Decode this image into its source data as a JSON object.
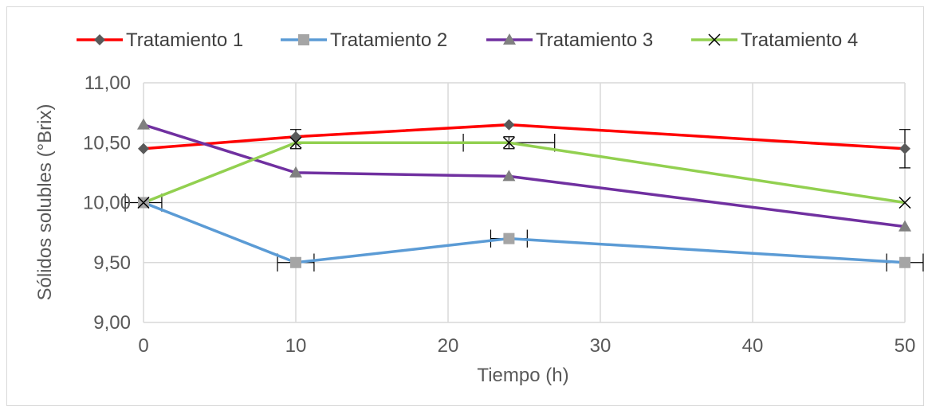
{
  "chart_data": {
    "type": "line",
    "title": "",
    "xlabel": "Tiempo (h)",
    "ylabel": "Sólidos solubles (°Brix)",
    "xlim": [
      0,
      50
    ],
    "ylim": [
      9.0,
      11.0
    ],
    "xticks": [
      0,
      10,
      20,
      30,
      40,
      50
    ],
    "xtick_labels": [
      "0",
      "10",
      "20",
      "30",
      "40",
      "50"
    ],
    "yticks": [
      9.0,
      9.5,
      10.0,
      10.5,
      11.0
    ],
    "ytick_labels": [
      "9,00",
      "9,50",
      "10,00",
      "10,50",
      "11,00"
    ],
    "grid": true,
    "legend_position": "top",
    "x": [
      0,
      10,
      24,
      50
    ],
    "series": [
      {
        "name": "Tratamiento 1",
        "color": "#ff0000",
        "marker": "diamond",
        "marker_color": "#595959",
        "values": [
          10.45,
          10.55,
          10.65,
          10.45
        ]
      },
      {
        "name": "Tratamiento 2",
        "color": "#5b9bd5",
        "marker": "square",
        "marker_color": "#a5a5a5",
        "values": [
          10.0,
          9.5,
          9.7,
          9.5
        ]
      },
      {
        "name": "Tratamiento 3",
        "color": "#7030a0",
        "marker": "triangle",
        "marker_color": "#808080",
        "values": [
          10.65,
          10.25,
          10.22,
          9.8
        ]
      },
      {
        "name": "Tratamiento 4",
        "color": "#92d050",
        "marker": "x",
        "marker_color": "#000000",
        "values": [
          10.0,
          10.5,
          10.5,
          10.0
        ]
      }
    ],
    "error_bars": [
      {
        "series": "Tratamiento 1",
        "x": 10,
        "y": 10.55,
        "direction": "vertical",
        "error": 0.06
      },
      {
        "series": "Tratamiento 1",
        "x": 50,
        "y": 10.45,
        "direction": "vertical",
        "error": 0.16
      },
      {
        "series": "Tratamiento 4",
        "x": 10,
        "y": 10.5,
        "direction": "vertical",
        "error": 0.05
      },
      {
        "series": "Tratamiento 4",
        "x": 24,
        "y": 10.5,
        "direction": "vertical",
        "error": 0.05
      },
      {
        "series": "Tratamiento 4",
        "x": 24,
        "y": 10.5,
        "direction": "horizontal",
        "error": 3
      },
      {
        "series": "Tratamiento 2",
        "x": 0,
        "y": 10.0,
        "direction": "horizontal",
        "error": 1.2
      },
      {
        "series": "Tratamiento 2",
        "x": 10,
        "y": 9.5,
        "direction": "horizontal",
        "error": 1.2
      },
      {
        "series": "Tratamiento 2",
        "x": 24,
        "y": 9.7,
        "direction": "horizontal",
        "error": 1.2
      },
      {
        "series": "Tratamiento 2",
        "x": 50,
        "y": 9.5,
        "direction": "horizontal",
        "error": 1.2
      }
    ],
    "gridline_color": "#d9d9d9"
  }
}
